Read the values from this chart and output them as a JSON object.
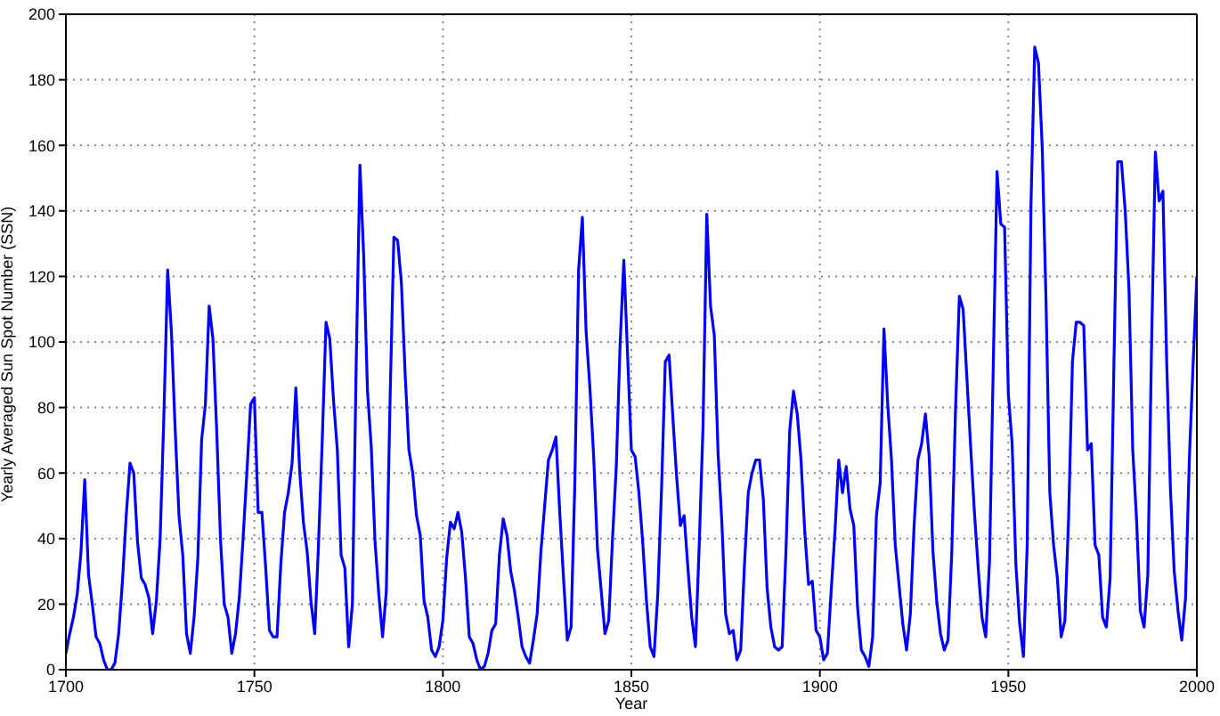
{
  "chart_data": {
    "type": "line",
    "xlabel": "Year",
    "ylabel": "Yearly Averaged Sun Spot Number (SSN)",
    "x": [
      1700,
      1701,
      1702,
      1703,
      1704,
      1705,
      1706,
      1707,
      1708,
      1709,
      1710,
      1711,
      1712,
      1713,
      1714,
      1715,
      1716,
      1717,
      1718,
      1719,
      1720,
      1721,
      1722,
      1723,
      1724,
      1725,
      1726,
      1727,
      1728,
      1729,
      1730,
      1731,
      1732,
      1733,
      1734,
      1735,
      1736,
      1737,
      1738,
      1739,
      1740,
      1741,
      1742,
      1743,
      1744,
      1745,
      1746,
      1747,
      1748,
      1749,
      1750,
      1751,
      1752,
      1753,
      1754,
      1755,
      1756,
      1757,
      1758,
      1759,
      1760,
      1761,
      1762,
      1763,
      1764,
      1765,
      1766,
      1767,
      1768,
      1769,
      1770,
      1771,
      1772,
      1773,
      1774,
      1775,
      1776,
      1777,
      1778,
      1779,
      1780,
      1781,
      1782,
      1783,
      1784,
      1785,
      1786,
      1787,
      1788,
      1789,
      1790,
      1791,
      1792,
      1793,
      1794,
      1795,
      1796,
      1797,
      1798,
      1799,
      1800,
      1801,
      1802,
      1803,
      1804,
      1805,
      1806,
      1807,
      1808,
      1809,
      1810,
      1811,
      1812,
      1813,
      1814,
      1815,
      1816,
      1817,
      1818,
      1819,
      1820,
      1821,
      1822,
      1823,
      1824,
      1825,
      1826,
      1827,
      1828,
      1829,
      1830,
      1831,
      1832,
      1833,
      1834,
      1835,
      1836,
      1837,
      1838,
      1839,
      1840,
      1841,
      1842,
      1843,
      1844,
      1845,
      1846,
      1847,
      1848,
      1849,
      1850,
      1851,
      1852,
      1853,
      1854,
      1855,
      1856,
      1857,
      1858,
      1859,
      1860,
      1861,
      1862,
      1863,
      1864,
      1865,
      1866,
      1867,
      1868,
      1869,
      1870,
      1871,
      1872,
      1873,
      1874,
      1875,
      1876,
      1877,
      1878,
      1879,
      1880,
      1881,
      1882,
      1883,
      1884,
      1885,
      1886,
      1887,
      1888,
      1889,
      1890,
      1891,
      1892,
      1893,
      1894,
      1895,
      1896,
      1897,
      1898,
      1899,
      1900,
      1901,
      1902,
      1903,
      1904,
      1905,
      1906,
      1907,
      1908,
      1909,
      1910,
      1911,
      1912,
      1913,
      1914,
      1915,
      1916,
      1917,
      1918,
      1919,
      1920,
      1921,
      1922,
      1923,
      1924,
      1925,
      1926,
      1927,
      1928,
      1929,
      1930,
      1931,
      1932,
      1933,
      1934,
      1935,
      1936,
      1937,
      1938,
      1939,
      1940,
      1941,
      1942,
      1943,
      1944,
      1945,
      1946,
      1947,
      1948,
      1949,
      1950,
      1951,
      1952,
      1953,
      1954,
      1955,
      1956,
      1957,
      1958,
      1959,
      1960,
      1961,
      1962,
      1963,
      1964,
      1965,
      1966,
      1967,
      1968,
      1969,
      1970,
      1971,
      1972,
      1973,
      1974,
      1975,
      1976,
      1977,
      1978,
      1979,
      1980,
      1981,
      1982,
      1983,
      1984,
      1985,
      1986,
      1987,
      1988,
      1989,
      1990,
      1991,
      1992,
      1993,
      1994,
      1995,
      1996,
      1997,
      1998,
      1999,
      2000
    ],
    "series": [
      {
        "color": "#0000ff",
        "values": [
          5,
          11,
          16,
          23,
          36,
          58,
          29,
          20,
          10,
          8,
          3,
          0,
          0,
          2,
          11,
          27,
          47,
          63,
          60,
          39,
          28,
          26,
          22,
          11,
          21,
          40,
          78,
          122,
          103,
          73,
          47,
          35,
          11,
          5,
          16,
          34,
          70,
          81,
          111,
          101,
          73,
          40,
          20,
          16,
          5,
          11,
          22,
          40,
          60,
          81,
          83,
          48,
          48,
          31,
          12,
          10,
          10,
          32,
          48,
          54,
          63,
          86,
          61,
          45,
          36,
          21,
          11,
          38,
          70,
          106,
          101,
          82,
          67,
          35,
          31,
          7,
          20,
          93,
          154,
          126,
          85,
          68,
          39,
          23,
          10,
          24,
          83,
          132,
          131,
          118,
          90,
          67,
          60,
          47,
          41,
          21,
          16,
          6,
          4,
          7,
          15,
          34,
          45,
          43,
          48,
          42,
          28,
          10,
          8,
          3,
          0,
          1,
          5,
          12,
          14,
          35,
          46,
          41,
          30,
          24,
          16,
          7,
          4,
          2,
          9,
          17,
          36,
          50,
          64,
          67,
          71,
          48,
          28,
          9,
          13,
          57,
          122,
          138,
          103,
          86,
          65,
          37,
          24,
          11,
          15,
          40,
          62,
          99,
          125,
          96,
          67,
          65,
          54,
          39,
          21,
          7,
          4,
          23,
          55,
          94,
          96,
          77,
          59,
          44,
          47,
          31,
          16,
          7,
          38,
          74,
          139,
          111,
          102,
          66,
          45,
          17,
          11,
          12,
          3,
          6,
          32,
          54,
          60,
          64,
          64,
          52,
          25,
          13,
          7,
          6,
          7,
          36,
          73,
          85,
          78,
          64,
          42,
          26,
          27,
          12,
          10,
          3,
          5,
          24,
          42,
          64,
          54,
          62,
          49,
          44,
          19,
          6,
          4,
          1,
          10,
          47,
          57,
          104,
          81,
          64,
          38,
          26,
          14,
          6,
          17,
          44,
          64,
          69,
          78,
          65,
          36,
          21,
          11,
          6,
          9,
          36,
          80,
          114,
          110,
          89,
          68,
          48,
          31,
          16,
          10,
          33,
          93,
          152,
          136,
          135,
          84,
          69,
          32,
          14,
          4,
          38,
          142,
          190,
          185,
          159,
          112,
          54,
          38,
          28,
          10,
          15,
          47,
          94,
          106,
          106,
          105,
          67,
          69,
          38,
          35,
          16,
          13,
          28,
          93,
          155,
          155,
          140,
          116,
          67,
          46,
          18,
          13,
          29,
          100,
          158,
          143,
          146,
          94,
          55,
          30,
          18,
          9,
          22,
          64,
          93,
          120
        ]
      }
    ],
    "xlim": [
      1700,
      2000
    ],
    "xticks": [
      1700,
      1750,
      1800,
      1850,
      1900,
      1950,
      2000
    ],
    "ylim": [
      0,
      200
    ],
    "yticks": [
      0,
      20,
      40,
      60,
      80,
      100,
      120,
      140,
      160,
      180,
      200
    ],
    "grid": true,
    "line_style": "solid"
  }
}
